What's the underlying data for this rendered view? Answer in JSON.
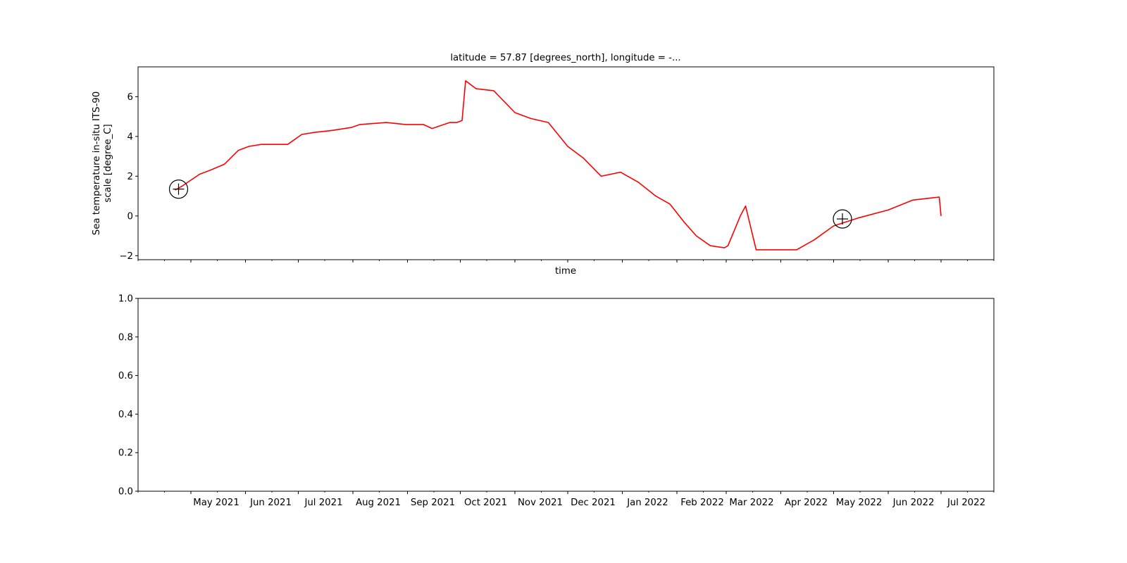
{
  "chart_data": [
    {
      "type": "line",
      "title": "latitude = 57.87 [degrees_north], longitude = -...",
      "xlabel": "time",
      "ylabel": [
        "Sea temperature in-situ ITS-90",
        "scale [degree_C]"
      ],
      "xlim": [
        "2021-04-01",
        "2022-07-31"
      ],
      "ylim": [
        -2.2,
        7.5
      ],
      "yticks": [
        -2,
        0,
        2,
        4,
        6
      ],
      "xticks": [
        "2021-05-01",
        "2021-06-01",
        "2021-07-01",
        "2021-08-01",
        "2021-09-01",
        "2021-10-01",
        "2021-11-01",
        "2021-12-01",
        "2022-01-01",
        "2022-02-01",
        "2022-03-01",
        "2022-04-01",
        "2022-05-01",
        "2022-06-01",
        "2022-07-01"
      ],
      "xticklabels": [
        "May 2021",
        "Jun 2021",
        "Jul 2021",
        "Aug 2021",
        "Sep 2021",
        "Oct 2021",
        "Nov 2021",
        "Dec 2021",
        "Jan 2022",
        "Feb 2022",
        "Mar 2022",
        "Apr 2022",
        "May 2022",
        "Jun 2022",
        "Jul 2022"
      ],
      "grid": false,
      "line_color": "#ff0000",
      "series": [
        {
          "x": [
            "2021-04-22",
            "2021-04-26",
            "2021-05-01",
            "2021-05-06",
            "2021-05-12",
            "2021-05-20",
            "2021-05-28",
            "2021-06-03",
            "2021-06-10",
            "2021-06-17",
            "2021-06-25",
            "2021-07-03",
            "2021-07-10",
            "2021-07-20",
            "2021-07-31",
            "2021-08-05",
            "2021-08-20",
            "2021-08-31",
            "2021-09-10",
            "2021-09-15",
            "2021-09-25",
            "2021-09-29",
            "2021-10-02",
            "2021-10-04",
            "2021-10-10",
            "2021-10-20",
            "2021-11-01",
            "2021-11-10",
            "2021-11-20",
            "2021-12-01",
            "2021-12-10",
            "2021-12-20",
            "2021-12-31",
            "2022-01-10",
            "2022-01-20",
            "2022-01-28",
            "2022-02-05",
            "2022-02-12",
            "2022-02-20",
            "2022-02-28",
            "2022-03-02",
            "2022-03-09",
            "2022-03-12",
            "2022-03-18",
            "2022-03-25",
            "2022-04-01",
            "2022-04-10",
            "2022-04-20",
            "2022-05-01",
            "2022-05-15",
            "2022-06-01",
            "2022-06-15",
            "2022-06-25",
            "2022-06-30",
            "2022-07-01"
          ],
          "y": [
            1.3,
            1.5,
            1.8,
            2.1,
            2.3,
            2.6,
            3.3,
            3.5,
            3.6,
            3.6,
            3.6,
            4.1,
            4.2,
            4.3,
            4.45,
            4.6,
            4.7,
            4.6,
            4.6,
            4.4,
            4.7,
            4.7,
            4.8,
            6.8,
            6.4,
            6.3,
            5.2,
            4.9,
            4.7,
            3.5,
            2.9,
            2.0,
            2.2,
            1.7,
            1.0,
            0.6,
            -0.3,
            -1.0,
            -1.5,
            -1.6,
            -1.5,
            0.0,
            0.5,
            -1.7,
            -1.7,
            -1.7,
            -1.7,
            -1.2,
            -0.5,
            -0.1,
            0.3,
            0.8,
            0.9,
            0.95,
            0.0
          ]
        }
      ],
      "markers": [
        {
          "x": "2021-04-24",
          "y": 1.35
        },
        {
          "x": "2022-05-06",
          "y": -0.15
        }
      ]
    },
    {
      "type": "line",
      "title": "",
      "xlabel": "",
      "ylabel": "",
      "ylim": [
        0,
        1
      ],
      "yticks": [
        0.0,
        0.2,
        0.4,
        0.6,
        0.8,
        1.0
      ],
      "yticklabels": [
        "0.0",
        "0.2",
        "0.4",
        "0.6",
        "0.8",
        "1.0"
      ],
      "series": []
    }
  ]
}
